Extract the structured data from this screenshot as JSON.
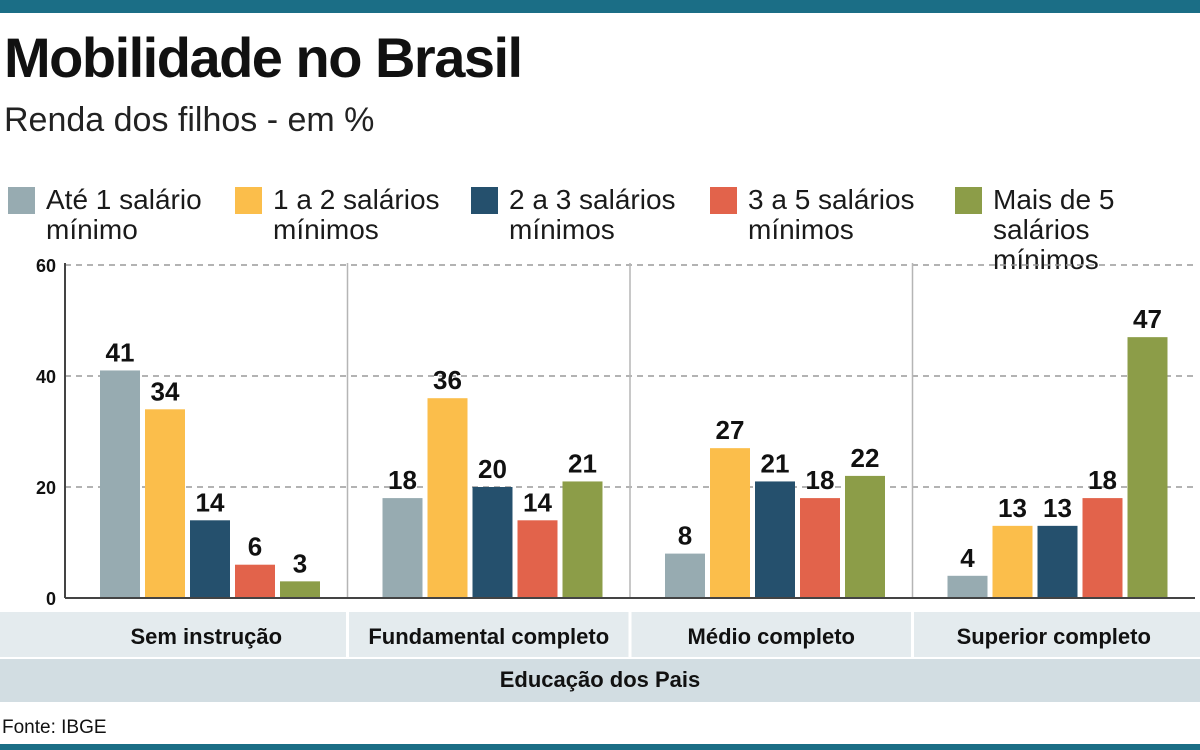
{
  "title": "Mobilidade no Brasil",
  "subtitle": "Renda dos filhos - em %",
  "source": "Fonte: IBGE",
  "colors": [
    "#97abb1",
    "#fbbe4b",
    "#25506d",
    "#e2634b",
    "#8c9d48"
  ],
  "chart_data": {
    "type": "bar",
    "title": "Mobilidade no Brasil",
    "subtitle": "Renda dos filhos - em %",
    "xlabel": "Educação dos Pais",
    "ylabel": "",
    "ylim": [
      0,
      60
    ],
    "yticks": [
      0,
      20,
      40,
      60
    ],
    "grid": true,
    "legend_position": "top",
    "categories": [
      "Sem instrução",
      "Fundamental completo",
      "Médio completo",
      "Superior completo"
    ],
    "series": [
      {
        "name": "Até 1 salário mínimo",
        "values": [
          41,
          18,
          8,
          4
        ]
      },
      {
        "name": "1 a 2 salários mínimos",
        "values": [
          34,
          36,
          27,
          13
        ]
      },
      {
        "name": "2 a 3 salários mínimos",
        "values": [
          14,
          20,
          21,
          13
        ]
      },
      {
        "name": "3 a 5 salários mínimos",
        "values": [
          6,
          14,
          18,
          18
        ]
      },
      {
        "name": "Mais de 5 salários mínimos",
        "values": [
          3,
          21,
          22,
          47
        ]
      }
    ]
  }
}
